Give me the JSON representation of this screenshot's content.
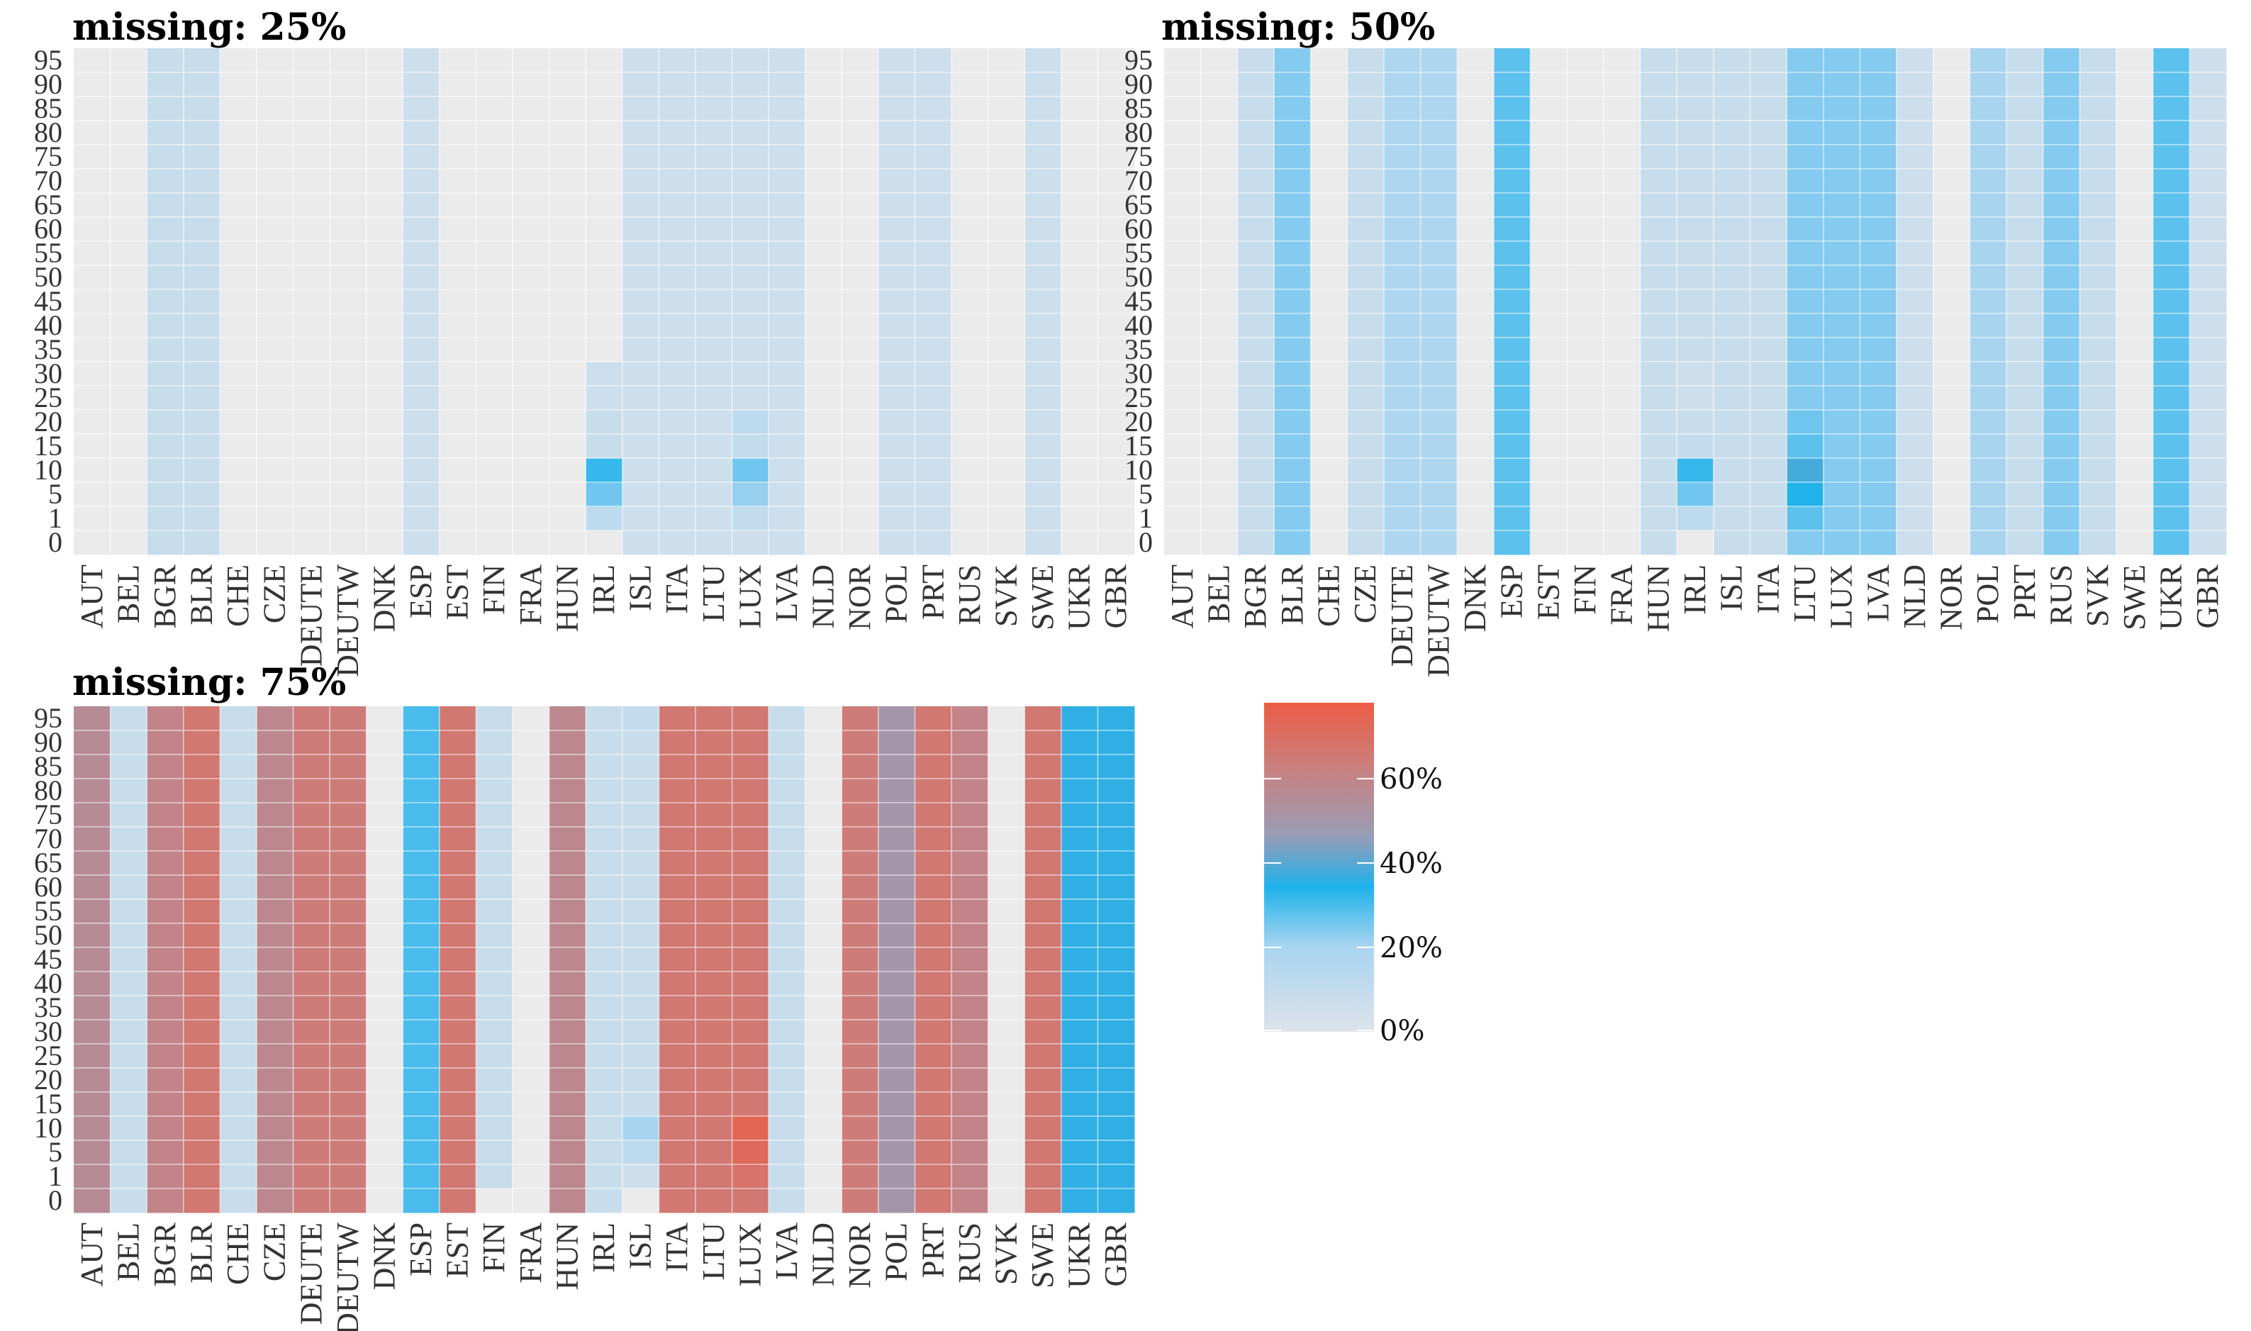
{
  "chart_data": {
    "type": "heatmap",
    "x_categories": [
      "AUT",
      "BEL",
      "BGR",
      "BLR",
      "CHE",
      "CZE",
      "DEUTE",
      "DEUTW",
      "DNK",
      "ESP",
      "EST",
      "FIN",
      "FRA",
      "HUN",
      "IRL",
      "ISL",
      "ITA",
      "LTU",
      "LUX",
      "LVA",
      "NLD",
      "NOR",
      "POL",
      "PRT",
      "RUS",
      "SVK",
      "SWE",
      "UKR",
      "GBR"
    ],
    "y_categories": [
      "0",
      "1",
      "5",
      "10",
      "15",
      "20",
      "25",
      "30",
      "35",
      "40",
      "45",
      "50",
      "55",
      "60",
      "65",
      "70",
      "75",
      "80",
      "85",
      "90",
      "95"
    ],
    "value_unit": "percent",
    "legend": {
      "ticks": [
        "0%",
        "20%",
        "40%",
        "60%"
      ],
      "max": 78
    },
    "panels": [
      {
        "title": "missing: 25%",
        "x_tick_labels": [
          "AUT",
          "BEL",
          "BGR",
          "BLR",
          "CHE",
          "CZE",
          "DEUTE",
          "DEUTW",
          "DNK",
          "ESP",
          "EST",
          "FIN",
          "FRA",
          "HUN",
          "IRL",
          "ISL",
          "ITA",
          "LTU",
          "LUX",
          "LVA",
          "NLD",
          "NOR",
          "POL",
          "PRT",
          "RUS",
          "SVK",
          "SWE",
          "UKR",
          "GBR"
        ],
        "column_values": [
          0,
          0,
          8,
          8,
          0,
          0,
          0,
          0,
          0,
          6,
          0,
          0,
          0,
          0,
          0,
          6,
          6,
          6,
          6,
          6,
          0,
          0,
          6,
          6,
          0,
          0,
          6,
          0,
          0
        ],
        "cell_overrides": [
          {
            "col": "IRL",
            "rows": {
              "0": 0,
              "1": 12,
              "5": 26,
              "10": 32,
              "15": 8,
              "20": 8,
              "25": 6,
              "30": 6
            }
          },
          {
            "col": "LUX",
            "rows": {
              "1": 10,
              "5": 22,
              "10": 26,
              "15": 10,
              "20": 12
            }
          }
        ]
      },
      {
        "title": "missing: 50%",
        "x_tick_labels": [
          "AUT",
          "BEL",
          "BGR",
          "BLR",
          "CHE",
          "CZE",
          "DEUTE",
          "DEUTW",
          "DNK",
          "ESP",
          "EST",
          "FIN",
          "FRA",
          "HUN",
          "IRL",
          "ISL",
          "ITA",
          "LTU",
          "LUX",
          "LVA",
          "NLD",
          "NOR",
          "POL",
          "PRT",
          "RUS",
          "SVK",
          "SWE",
          "UKR",
          "GBR"
        ],
        "column_values": [
          0,
          0,
          8,
          24,
          0,
          8,
          18,
          18,
          0,
          28,
          0,
          0,
          0,
          8,
          8,
          8,
          8,
          24,
          24,
          24,
          6,
          0,
          20,
          8,
          24,
          8,
          0,
          28,
          6
        ],
        "cell_overrides": [
          {
            "col": "IRL",
            "rows": {
              "0": 0,
              "1": 12,
              "5": 26,
              "10": 32,
              "15": 10,
              "20": 8,
              "25": 6,
              "30": 6
            }
          },
          {
            "col": "LTU",
            "rows": {
              "1": 28,
              "5": 34,
              "10": 38,
              "15": 28,
              "20": 26
            }
          }
        ]
      },
      {
        "title": "missing: 75%",
        "x_tick_labels": [
          "AUT",
          "BEL",
          "BGR",
          "BLR",
          "CHE",
          "CZE",
          "DEUTE",
          "DEUTW",
          "DNK",
          "ESP",
          "EST",
          "FIN",
          "FRA",
          "HUN",
          "IRL",
          "ISL",
          "ITA",
          "LTU",
          "LUX",
          "LVA",
          "NLD",
          "NOR",
          "POL",
          "PRT",
          "RUS",
          "SVK",
          "SWE",
          "UKR",
          "GBR"
        ],
        "column_values": [
          56,
          8,
          60,
          66,
          8,
          58,
          64,
          64,
          0,
          30,
          66,
          8,
          0,
          58,
          8,
          8,
          66,
          66,
          66,
          8,
          0,
          64,
          50,
          66,
          60,
          0,
          66,
          36,
          36
        ],
        "cell_overrides": [
          {
            "col": "ISL",
            "rows": {
              "0": 0,
              "1": 6,
              "5": 12,
              "10": 20,
              "95": 10
            }
          },
          {
            "col": "FIN",
            "rows": {
              "0": 0
            }
          },
          {
            "col": "LUX",
            "rows": {
              "1": 68,
              "5": 72,
              "10": 74
            }
          }
        ]
      }
    ]
  }
}
